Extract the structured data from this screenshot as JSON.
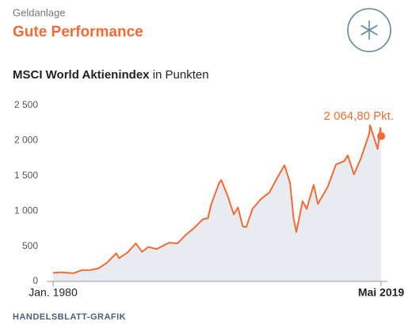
{
  "chart_data": {
    "type": "line",
    "kicker": "Geldanlage",
    "title": "Gute Performance",
    "subtitle_bold": "MSCI World Aktienindex",
    "subtitle_rest": "in Punkten",
    "annotation": "2 064,80 Pkt.",
    "source": "HANDELSBLATT-GRAFIK",
    "color": "#f26b36",
    "area_color": "#e8ecf0",
    "grid": false,
    "x": [
      "1980-01",
      "1981-01",
      "1982-06",
      "1983-06",
      "1984-06",
      "1985-06",
      "1986-06",
      "1987-08",
      "1987-12",
      "1988-12",
      "1989-12",
      "1990-09",
      "1991-06",
      "1992-06",
      "1993-12",
      "1994-12",
      "1995-12",
      "1996-12",
      "1997-12",
      "1998-08",
      "1998-12",
      "1999-12",
      "2000-03",
      "2000-12",
      "2001-09",
      "2002-03",
      "2002-10",
      "2003-03",
      "2003-12",
      "2004-12",
      "2005-12",
      "2006-12",
      "2007-10",
      "2008-06",
      "2008-11",
      "2009-03",
      "2009-12",
      "2010-06",
      "2011-04",
      "2011-10",
      "2012-12",
      "2013-12",
      "2014-12",
      "2015-05",
      "2016-02",
      "2016-12",
      "2017-12",
      "2018-01",
      "2018-12",
      "2019-04",
      "2019-05"
    ],
    "values": [
      120,
      130,
      115,
      160,
      160,
      185,
      260,
      400,
      330,
      410,
      540,
      420,
      490,
      460,
      550,
      540,
      660,
      760,
      880,
      900,
      1080,
      1400,
      1440,
      1220,
      950,
      1050,
      780,
      770,
      1030,
      1170,
      1260,
      1480,
      1650,
      1400,
      900,
      700,
      1140,
      1030,
      1370,
      1100,
      1340,
      1660,
      1710,
      1790,
      1520,
      1750,
      2100,
      2220,
      1880,
      2180,
      2064.8
    ],
    "xlim": [
      "1980-01",
      "2019-05"
    ],
    "xticks": [
      {
        "value": "1980-01",
        "label": "Jan. 1980"
      },
      {
        "value": "2019-05",
        "label": "Mai 2019"
      }
    ],
    "ylim": [
      0,
      2500
    ],
    "yticks": [
      0,
      500,
      {
        "value": 1000,
        "label": "1 000"
      },
      {
        "value": 1500,
        "label": "1 500"
      },
      {
        "value": 2000,
        "label": "2 000"
      },
      {
        "value": 2500,
        "label": "2 500"
      }
    ]
  }
}
